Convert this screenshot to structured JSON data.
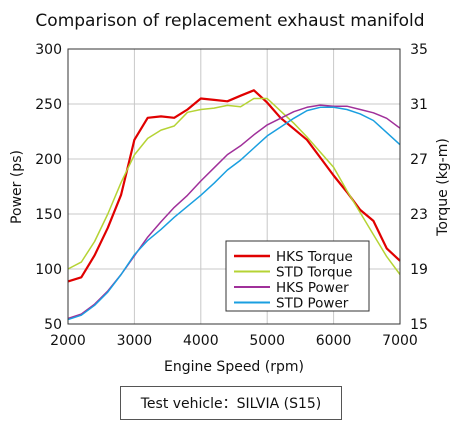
{
  "chart_data": {
    "type": "line",
    "title": "Comparison of replacement exhaust manifold",
    "xlabel": "Engine Speed (rpm)",
    "ylabel_left": "Power (ps)",
    "ylabel_right": "Torque (kg-m)",
    "xlim": [
      2000,
      7000
    ],
    "ylim_left": [
      50,
      300
    ],
    "ylim_right": [
      15,
      35
    ],
    "x_ticks": [
      2000,
      3000,
      4000,
      5000,
      6000,
      7000
    ],
    "y_ticks_left": [
      50,
      100,
      150,
      200,
      250,
      300
    ],
    "y_ticks_right": [
      15,
      19,
      23,
      27,
      31,
      35
    ],
    "grid": true,
    "legend_position": "bottom-right",
    "series": [
      {
        "name": "HKS Torque",
        "axis": "right",
        "color": "#e00000",
        "x": [
          2000,
          2200,
          2400,
          2600,
          2800,
          3000,
          3200,
          3400,
          3600,
          3800,
          4000,
          4200,
          4400,
          4600,
          4800,
          5000,
          5200,
          5400,
          5600,
          5800,
          6000,
          6200,
          6400,
          6600,
          6800,
          7000
        ],
        "y": [
          18.1,
          18.4,
          20.0,
          22.0,
          24.4,
          28.4,
          30.0,
          30.1,
          30.0,
          30.6,
          31.4,
          31.3,
          31.2,
          31.6,
          32.0,
          31.1,
          30.0,
          29.2,
          28.4,
          27.1,
          25.8,
          24.6,
          23.3,
          22.5,
          20.5,
          19.6
        ]
      },
      {
        "name": "STD Torque",
        "axis": "right",
        "color": "#b5d334",
        "x": [
          2000,
          2200,
          2400,
          2600,
          2800,
          3000,
          3200,
          3400,
          3600,
          3800,
          4000,
          4200,
          4400,
          4600,
          4800,
          5000,
          5200,
          5400,
          5600,
          5800,
          6000,
          6200,
          6400,
          6600,
          6800,
          7000
        ],
        "y": [
          19.0,
          19.5,
          21.0,
          23.0,
          25.3,
          27.3,
          28.5,
          29.1,
          29.4,
          30.4,
          30.6,
          30.7,
          30.9,
          30.8,
          31.4,
          31.4,
          30.5,
          29.6,
          28.6,
          27.5,
          26.4,
          24.7,
          23.1,
          21.5,
          19.9,
          18.6
        ]
      },
      {
        "name": "HKS Power",
        "axis": "left",
        "color": "#a0309a",
        "x": [
          2000,
          2200,
          2400,
          2600,
          2800,
          3000,
          3200,
          3400,
          3600,
          3800,
          4000,
          4200,
          4400,
          4600,
          4800,
          5000,
          5200,
          5400,
          5600,
          5800,
          6000,
          6200,
          6400,
          6600,
          6800,
          7000
        ],
        "y": [
          55,
          59,
          68,
          80,
          95,
          112,
          129,
          143,
          156,
          167,
          180,
          192,
          204,
          212,
          222,
          231,
          237,
          243,
          247,
          249,
          248,
          248,
          245,
          242,
          237,
          228
        ]
      },
      {
        "name": "STD Power",
        "axis": "left",
        "color": "#1a9fe0",
        "x": [
          2000,
          2200,
          2400,
          2600,
          2800,
          3000,
          3200,
          3400,
          3600,
          3800,
          4000,
          4200,
          4400,
          4600,
          4800,
          5000,
          5200,
          5400,
          5600,
          5800,
          6000,
          6200,
          6400,
          6600,
          6800,
          7000
        ],
        "y": [
          54,
          58,
          67,
          79,
          95,
          113,
          126,
          136,
          147,
          157,
          167,
          178,
          190,
          199,
          210,
          221,
          229,
          237,
          244,
          247,
          247,
          245,
          241,
          235,
          224,
          213
        ]
      }
    ]
  },
  "caption": "Test vehicle：SILVIA (S15)"
}
